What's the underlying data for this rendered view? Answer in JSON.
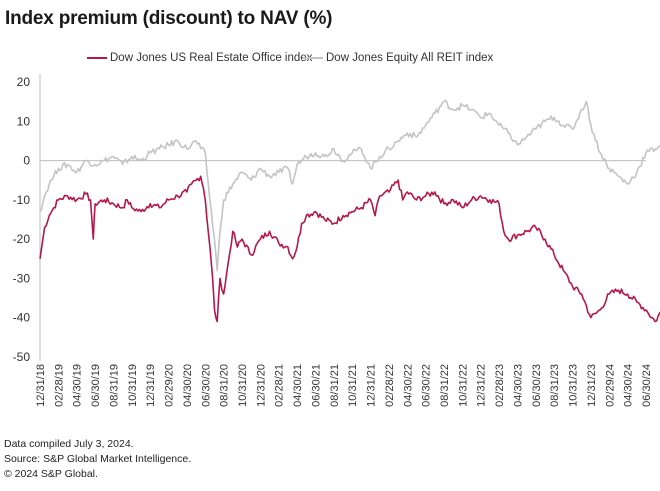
{
  "chart_data": {
    "type": "line",
    "title": "Index premium (discount) to NAV (%)",
    "xlabel": "",
    "ylabel": "",
    "ylim": [
      -50,
      20
    ],
    "yticks": [
      "20",
      "10",
      "0",
      "-10",
      "-20",
      "-30",
      "-40",
      "-50"
    ],
    "ytick_values": [
      20,
      10,
      0,
      -10,
      -20,
      -30,
      -40,
      -50
    ],
    "xticks": [
      "12/31/18",
      "02/28/19",
      "04/30/19",
      "06/30/19",
      "08/31/19",
      "10/31/19",
      "12/31/19",
      "02/29/20",
      "04/30/20",
      "06/30/20",
      "08/31/20",
      "10/31/20",
      "12/31/20",
      "02/28/21",
      "04/30/21",
      "06/30/21",
      "08/31/21",
      "10/31/21",
      "12/31/21",
      "02/28/22",
      "04/30/22",
      "06/30/22",
      "08/31/22",
      "10/31/22",
      "12/31/22",
      "02/28/23",
      "04/30/23",
      "06/30/23",
      "08/31/23",
      "10/31/23",
      "12/31/23",
      "02/29/24",
      "04/30/24",
      "06/30/24"
    ],
    "x_unit": "months since 12/31/18",
    "grid": false,
    "zero_line": true,
    "legend_position": "top",
    "series": [
      {
        "name": "Dow Jones US Real Estate Office index",
        "color": "#b5174b",
        "points": [
          [
            0,
            -25
          ],
          [
            0.5,
            -17
          ],
          [
            1,
            -14
          ],
          [
            1.5,
            -12
          ],
          [
            2,
            -10
          ],
          [
            3,
            -9
          ],
          [
            4,
            -10
          ],
          [
            5,
            -8.5
          ],
          [
            5.5,
            -10
          ],
          [
            5.8,
            -20
          ],
          [
            6,
            -11
          ],
          [
            7,
            -10
          ],
          [
            8,
            -11
          ],
          [
            9,
            -12
          ],
          [
            9.5,
            -10
          ],
          [
            10,
            -12
          ],
          [
            11,
            -13
          ],
          [
            12,
            -11
          ],
          [
            13,
            -12
          ],
          [
            14,
            -10
          ],
          [
            15,
            -9
          ],
          [
            16,
            -8
          ],
          [
            16.5,
            -6
          ],
          [
            17,
            -5
          ],
          [
            17.5,
            -4
          ],
          [
            17.8,
            -7
          ],
          [
            18,
            -10
          ],
          [
            18.5,
            -22
          ],
          [
            18.8,
            -30
          ],
          [
            19,
            -38
          ],
          [
            19.3,
            -41
          ],
          [
            19.6,
            -30
          ],
          [
            20,
            -34
          ],
          [
            20.5,
            -26
          ],
          [
            21,
            -18
          ],
          [
            21.5,
            -22
          ],
          [
            22,
            -20
          ],
          [
            23,
            -24
          ],
          [
            24,
            -20
          ],
          [
            25,
            -18
          ],
          [
            26,
            -21
          ],
          [
            27,
            -22
          ],
          [
            27.5,
            -25
          ],
          [
            28,
            -22
          ],
          [
            28.5,
            -16
          ],
          [
            29,
            -14
          ],
          [
            30,
            -13
          ],
          [
            31,
            -15
          ],
          [
            32,
            -16
          ],
          [
            33,
            -14
          ],
          [
            34,
            -13
          ],
          [
            35,
            -12
          ],
          [
            36,
            -10
          ],
          [
            36.5,
            -14
          ],
          [
            37,
            -9
          ],
          [
            38,
            -8
          ],
          [
            39,
            -5
          ],
          [
            39.5,
            -10
          ],
          [
            40,
            -8
          ],
          [
            41,
            -10
          ],
          [
            42,
            -9
          ],
          [
            43,
            -8
          ],
          [
            44,
            -11
          ],
          [
            45,
            -10
          ],
          [
            46,
            -12
          ],
          [
            47,
            -10
          ],
          [
            48,
            -9
          ],
          [
            49,
            -10
          ],
          [
            50,
            -11
          ],
          [
            50.5,
            -18
          ],
          [
            51,
            -20
          ],
          [
            52,
            -19
          ],
          [
            53,
            -18
          ],
          [
            54,
            -17
          ],
          [
            55,
            -20
          ],
          [
            56,
            -24
          ],
          [
            57,
            -28
          ],
          [
            58,
            -32
          ],
          [
            59,
            -34
          ],
          [
            60,
            -40
          ],
          [
            61,
            -38
          ],
          [
            62,
            -34
          ],
          [
            63,
            -33
          ],
          [
            64,
            -34
          ],
          [
            65,
            -36
          ],
          [
            66,
            -38
          ],
          [
            67,
            -41
          ],
          [
            68,
            -37
          ],
          [
            69,
            -34
          ],
          [
            70,
            -35
          ],
          [
            71,
            -37
          ],
          [
            72,
            -33
          ],
          [
            73,
            -30
          ],
          [
            74,
            -26
          ],
          [
            74.5,
            -22
          ],
          [
            75,
            -26
          ],
          [
            76,
            -30
          ],
          [
            77,
            -35
          ],
          [
            78,
            -40
          ],
          [
            79,
            -44
          ],
          [
            80,
            -40
          ],
          [
            81,
            -39
          ],
          [
            82,
            -38
          ],
          [
            83,
            -36
          ],
          [
            84,
            -33
          ],
          [
            85,
            -32
          ],
          [
            86,
            -30
          ],
          [
            87,
            -33
          ],
          [
            88,
            -28
          ],
          [
            89,
            -29
          ],
          [
            90,
            -32
          ],
          [
            91,
            -37
          ],
          [
            92,
            -40
          ],
          [
            93,
            -38
          ],
          [
            94,
            -42
          ],
          [
            95,
            -40
          ],
          [
            96,
            -30
          ],
          [
            97,
            -20
          ],
          [
            97.5,
            -16
          ],
          [
            98,
            -17
          ],
          [
            99,
            -19
          ],
          [
            100,
            -24
          ],
          [
            101,
            -20
          ],
          [
            102,
            -19
          ],
          [
            103,
            -23
          ],
          [
            104,
            -20
          ],
          [
            105,
            -24
          ],
          [
            106,
            -21
          ],
          [
            107,
            -22
          ],
          [
            108,
            -21
          ]
        ]
      },
      {
        "name": "Dow Jones Equity All REIT index",
        "color": "#c4c4c4",
        "points": [
          [
            0,
            -13
          ],
          [
            0.5,
            -9
          ],
          [
            1,
            -6
          ],
          [
            1.5,
            -4
          ],
          [
            2,
            -2
          ],
          [
            3,
            -1
          ],
          [
            4,
            -3
          ],
          [
            5,
            0
          ],
          [
            6,
            -1
          ],
          [
            7,
            0
          ],
          [
            8,
            1
          ],
          [
            9,
            -1
          ],
          [
            10,
            1
          ],
          [
            11,
            0
          ],
          [
            12,
            2
          ],
          [
            13,
            3
          ],
          [
            14,
            4
          ],
          [
            15,
            5
          ],
          [
            16,
            3
          ],
          [
            17,
            5
          ],
          [
            17.5,
            3
          ],
          [
            18,
            2
          ],
          [
            18.5,
            -10
          ],
          [
            19,
            -20
          ],
          [
            19.3,
            -28
          ],
          [
            19.6,
            -18
          ],
          [
            20,
            -10
          ],
          [
            21,
            -6
          ],
          [
            22,
            -3
          ],
          [
            23,
            -5
          ],
          [
            24,
            -2
          ],
          [
            25,
            -4
          ],
          [
            26,
            -3
          ],
          [
            27,
            -2
          ],
          [
            27.5,
            -6
          ],
          [
            28,
            -1
          ],
          [
            29,
            1
          ],
          [
            30,
            2
          ],
          [
            31,
            1
          ],
          [
            32,
            3
          ],
          [
            33,
            0
          ],
          [
            34,
            2
          ],
          [
            35,
            3
          ],
          [
            36,
            -2
          ],
          [
            37,
            1
          ],
          [
            38,
            3
          ],
          [
            39,
            5
          ],
          [
            40,
            7
          ],
          [
            41,
            6
          ],
          [
            42,
            9
          ],
          [
            43,
            12
          ],
          [
            44,
            15
          ],
          [
            45,
            13
          ],
          [
            46,
            14
          ],
          [
            47,
            13
          ],
          [
            48,
            11
          ],
          [
            49,
            12
          ],
          [
            50,
            9
          ],
          [
            51,
            7
          ],
          [
            52,
            4
          ],
          [
            53,
            6
          ],
          [
            54,
            8
          ],
          [
            55,
            10
          ],
          [
            56,
            11
          ],
          [
            57,
            9
          ],
          [
            58,
            8
          ],
          [
            59,
            13
          ],
          [
            59.5,
            15
          ],
          [
            60,
            9
          ],
          [
            61,
            2
          ],
          [
            62,
            -2
          ],
          [
            63,
            -4
          ],
          [
            64,
            -6
          ],
          [
            65,
            -3
          ],
          [
            66,
            2
          ],
          [
            67,
            3
          ],
          [
            68,
            5
          ],
          [
            69,
            -3
          ],
          [
            70,
            -9
          ],
          [
            71,
            -12
          ],
          [
            72,
            -9
          ],
          [
            73,
            -11
          ],
          [
            74,
            -5
          ],
          [
            75,
            -3
          ],
          [
            76,
            0
          ],
          [
            77,
            -3
          ],
          [
            78,
            -8
          ],
          [
            79,
            -13
          ],
          [
            80,
            -18
          ],
          [
            81,
            -21
          ],
          [
            82,
            -15
          ],
          [
            83,
            -11
          ],
          [
            84,
            -9
          ],
          [
            85,
            -7
          ],
          [
            86,
            -5
          ],
          [
            87,
            -3
          ],
          [
            88,
            0
          ],
          [
            89,
            -5
          ],
          [
            90,
            -9
          ],
          [
            91,
            -14
          ],
          [
            92,
            -11
          ],
          [
            93,
            -12
          ],
          [
            94,
            -11
          ],
          [
            95,
            -12
          ],
          [
            96,
            -10
          ],
          [
            97,
            -8
          ],
          [
            98,
            -6
          ],
          [
            99,
            -4
          ],
          [
            100,
            -3
          ],
          [
            101,
            -7
          ],
          [
            102,
            -12
          ],
          [
            103,
            -14
          ],
          [
            104,
            -10
          ],
          [
            105,
            -9
          ],
          [
            106,
            -10
          ],
          [
            107,
            -13
          ],
          [
            108,
            -16
          ],
          [
            109,
            -18
          ],
          [
            110,
            -14
          ],
          [
            111,
            -8
          ],
          [
            112,
            0
          ],
          [
            113,
            2
          ],
          [
            114,
            -1
          ],
          [
            115,
            -2
          ],
          [
            116,
            -1
          ],
          [
            117,
            -4
          ],
          [
            118,
            -2
          ],
          [
            119,
            -5
          ],
          [
            120,
            -9
          ],
          [
            121,
            -5
          ],
          [
            122,
            -4
          ],
          [
            123,
            -3
          ],
          [
            124,
            -2
          ]
        ]
      }
    ]
  },
  "footer": {
    "line1": "Data compiled July 3, 2024.",
    "line2": "Source: S&P Global Market Intelligence.",
    "line3": "© 2024 S&P Global."
  }
}
